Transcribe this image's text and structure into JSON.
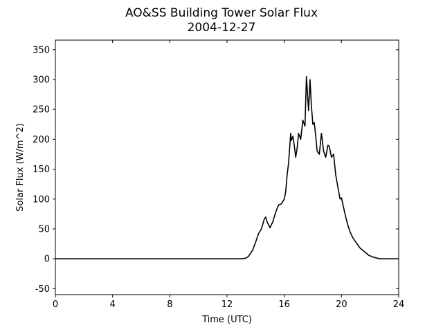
{
  "chart_data": {
    "type": "line",
    "title": "AO&SS Building Tower Solar Flux",
    "subtitle": "2004-12-27",
    "xlabel": "Time (UTC)",
    "ylabel": "Solar Flux (W/m^2)",
    "xlim": [
      0,
      24
    ],
    "ylim": [
      -60,
      366
    ],
    "xticks": [
      0,
      4,
      8,
      12,
      16,
      20,
      24
    ],
    "yticks": [
      -50,
      0,
      50,
      100,
      150,
      200,
      250,
      300,
      350
    ],
    "grid": false,
    "legend": "none",
    "line_color": "#000000",
    "series": [
      {
        "x": [
          0,
          13.0,
          13.3,
          13.5,
          13.8,
          14.0,
          14.2,
          14.4,
          14.6,
          14.7,
          14.8,
          15.0,
          15.2,
          15.4,
          15.6,
          15.8,
          16.0,
          16.1,
          16.2,
          16.3,
          16.45,
          16.5,
          16.6,
          16.7,
          16.8,
          16.9,
          17.0,
          17.15,
          17.3,
          17.45,
          17.55,
          17.7,
          17.8,
          17.9,
          18.0,
          18.1,
          18.2,
          18.3,
          18.45,
          18.6,
          18.75,
          18.9,
          19.05,
          19.15,
          19.3,
          19.45,
          19.6,
          19.75,
          19.9,
          20.0,
          20.2,
          20.4,
          20.6,
          20.8,
          21.0,
          21.3,
          21.6,
          21.9,
          22.2,
          22.5,
          22.7,
          23.0,
          24.0
        ],
        "y": [
          0,
          0,
          1,
          4,
          15,
          28,
          42,
          50,
          66,
          70,
          62,
          52,
          62,
          78,
          90,
          92,
          100,
          112,
          140,
          160,
          210,
          198,
          205,
          190,
          170,
          185,
          210,
          200,
          232,
          222,
          305,
          248,
          300,
          255,
          225,
          228,
          205,
          180,
          175,
          210,
          180,
          170,
          190,
          188,
          170,
          175,
          140,
          120,
          100,
          102,
          80,
          60,
          45,
          35,
          28,
          18,
          12,
          6,
          3,
          1,
          0,
          0,
          0
        ]
      }
    ]
  }
}
